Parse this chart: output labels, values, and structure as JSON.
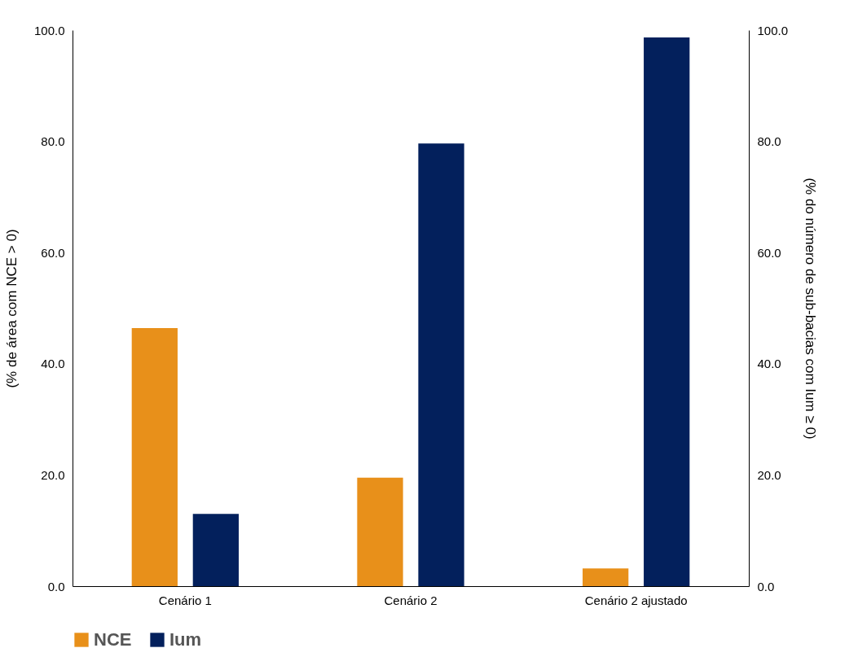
{
  "chart_data": {
    "type": "bar",
    "categories": [
      "Cenário 1",
      "Cenário 2",
      "Cenário 2 ajustado"
    ],
    "ylabel": "(% de área com NCE > 0)",
    "y2label": "(% do número de sub-bacias com Ium ≥ 0)",
    "ylim": [
      0,
      100
    ],
    "yticks": [
      {
        "value": 0,
        "label": "0.0"
      },
      {
        "value": 20,
        "label": "20.0"
      },
      {
        "value": 40,
        "label": "40.0"
      },
      {
        "value": 60,
        "label": "60.0"
      },
      {
        "value": 80,
        "label": "80.0"
      },
      {
        "value": 100,
        "label": "100.0"
      }
    ],
    "y2lim": [
      0,
      100
    ],
    "y2ticks": [
      {
        "value": 0,
        "label": "0.0"
      },
      {
        "value": 20,
        "label": "20.0"
      },
      {
        "value": 40,
        "label": "40.0"
      },
      {
        "value": 60,
        "label": "60.0"
      },
      {
        "value": 80,
        "label": "80.0"
      },
      {
        "value": 100,
        "label": "100.0"
      }
    ],
    "series": [
      {
        "name": "NCE",
        "color": "#e8901a",
        "values": [
          46.4,
          19.5,
          3.2
        ]
      },
      {
        "name": "Ium",
        "color": "#03205c",
        "axis": "y2",
        "values": [
          13.0,
          79.6,
          98.7
        ]
      }
    ],
    "grid": false,
    "legend": "bottom"
  }
}
